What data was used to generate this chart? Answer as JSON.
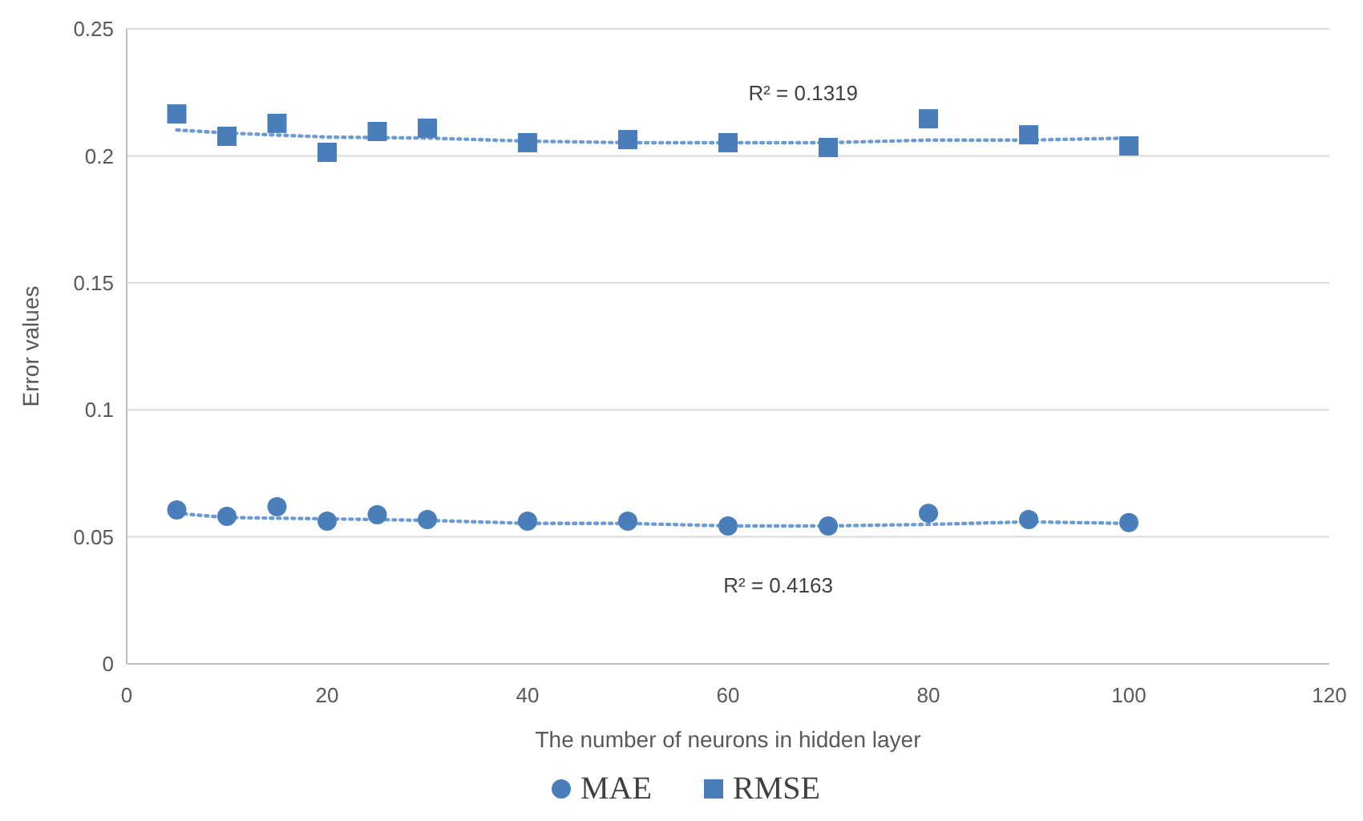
{
  "chart_data": {
    "type": "scatter",
    "xlabel": "The number of neurons in hidden layer",
    "ylabel": "Error values",
    "xlim": [
      0,
      120
    ],
    "xticks": [
      0,
      20,
      40,
      60,
      80,
      100,
      120
    ],
    "ylim": [
      0,
      0.25
    ],
    "yticks": [
      0,
      0.05,
      0.1,
      0.15,
      0.2,
      0.25
    ],
    "grid": "y",
    "legend": "bottom",
    "series": [
      {
        "name": "MAE",
        "color": "#4a7ebb",
        "marker": "circle",
        "x": [
          5,
          10,
          15,
          20,
          25,
          30,
          40,
          50,
          60,
          70,
          80,
          90,
          100
        ],
        "values": [
          0.0606,
          0.0581,
          0.0619,
          0.0562,
          0.0587,
          0.0568,
          0.0562,
          0.0562,
          0.0543,
          0.0543,
          0.0593,
          0.0568,
          0.0556
        ]
      },
      {
        "name": "RMSE",
        "color": "#4a7ebb",
        "marker": "square",
        "x": [
          5,
          10,
          15,
          20,
          25,
          30,
          40,
          50,
          60,
          70,
          80,
          90,
          100
        ],
        "values": [
          0.2165,
          0.2077,
          0.2128,
          0.2014,
          0.2096,
          0.2109,
          0.2052,
          0.2064,
          0.2052,
          0.2033,
          0.2146,
          0.2083,
          0.2039
        ]
      },
      {
        "type": "line",
        "color": "#6a9bd6",
        "marker": "none",
        "line_style": "dotted",
        "x": [
          5,
          10,
          20,
          30,
          40,
          50,
          60,
          70,
          80,
          90,
          100
        ],
        "values": [
          0.0593,
          0.0576,
          0.0571,
          0.0565,
          0.0553,
          0.0553,
          0.0543,
          0.0543,
          0.0549,
          0.0559,
          0.0553
        ]
      },
      {
        "type": "line",
        "color": "#6a9bd6",
        "marker": "none",
        "line_style": "dotted",
        "x": [
          5,
          10,
          20,
          30,
          40,
          50,
          60,
          70,
          80,
          90,
          100
        ],
        "values": [
          0.2102,
          0.209,
          0.2074,
          0.207,
          0.2058,
          0.2052,
          0.2052,
          0.2052,
          0.2062,
          0.2062,
          0.207
        ]
      }
    ],
    "annotations": [
      "R² = 0.1319",
      "R² = 0.4163"
    ]
  }
}
